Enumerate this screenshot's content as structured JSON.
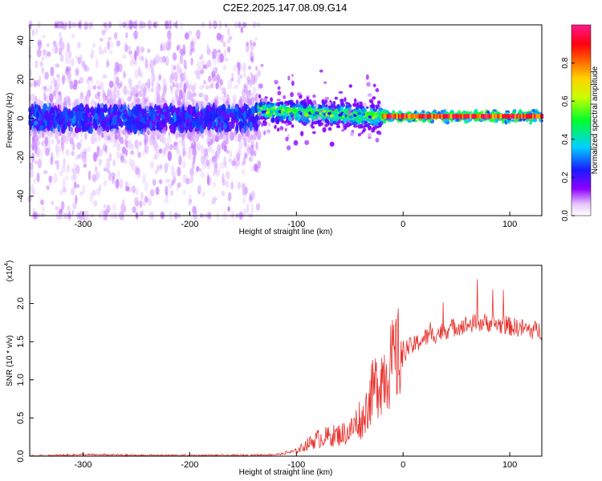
{
  "title": "C2E2.2025.147.08.09.G14",
  "chart_data": [
    {
      "type": "heatmap",
      "panel": "top",
      "xlabel": "Height of straight line (km)",
      "ylabel": "Frequency (Hz)",
      "xlim": [
        -350,
        130
      ],
      "ylim": [
        -50,
        48
      ],
      "xticks": [
        -300,
        -200,
        -100,
        0,
        100
      ],
      "yticks": [
        -40,
        -20,
        0,
        20,
        40
      ],
      "colorbar": {
        "label": "Normalized spectral amplitude",
        "range": [
          0,
          1
        ],
        "ticks": [
          "0.0",
          "0.2",
          "0.4",
          "0.6",
          "0.8"
        ],
        "colormap": "rainbow (white, violet, blue, cyan, green, yellow, orange, red, magenta)"
      },
      "description_regions": [
        {
          "x_range": [
            -350,
            -135
          ],
          "freq_center": 0,
          "freq_spread": 50,
          "amplitude": [
            0.05,
            0.3
          ]
        },
        {
          "x_range": [
            -135,
            -20
          ],
          "freq_center": 3,
          "freq_spread": 8,
          "amplitude": [
            0.2,
            0.6
          ]
        },
        {
          "x_range": [
            -20,
            130
          ],
          "freq_center": 1,
          "freq_spread": 2,
          "amplitude": [
            0.7,
            1.0
          ]
        }
      ]
    },
    {
      "type": "line",
      "panel": "bottom",
      "xlabel": "Height of straight line (km)",
      "ylabel": "SNR (10 * v/v)",
      "yscale_label": "(x10",
      "yscale_exp": "4",
      "xlim": [
        -350,
        130
      ],
      "ylim": [
        0,
        2.5
      ],
      "xticks": [
        -300,
        -200,
        -100,
        0,
        100
      ],
      "yticks": [
        "0.0",
        "0.5",
        "1.0",
        "1.5",
        "2.0"
      ],
      "ytick_values": [
        0,
        0.5,
        1.0,
        1.5,
        2.0
      ],
      "series": [
        {
          "color": "#e8312c",
          "x": [
            -350,
            -300,
            -250,
            -200,
            -150,
            -120,
            -100,
            -90,
            -80,
            -70,
            -60,
            -50,
            -40,
            -35,
            -30,
            -25,
            -20,
            -15,
            -10,
            -5,
            0,
            10,
            20,
            30,
            40,
            50,
            60,
            70,
            80,
            90,
            100,
            110,
            120,
            130
          ],
          "y": [
            0.0,
            0.02,
            0.01,
            0.01,
            0.01,
            0.02,
            0.05,
            0.12,
            0.18,
            0.2,
            0.22,
            0.25,
            0.4,
            0.6,
            0.8,
            0.95,
            1.05,
            1.15,
            1.2,
            1.3,
            1.4,
            1.45,
            1.55,
            1.6,
            1.65,
            1.7,
            1.72,
            1.75,
            1.75,
            1.72,
            1.7,
            1.68,
            1.65,
            1.65
          ]
        }
      ]
    }
  ]
}
